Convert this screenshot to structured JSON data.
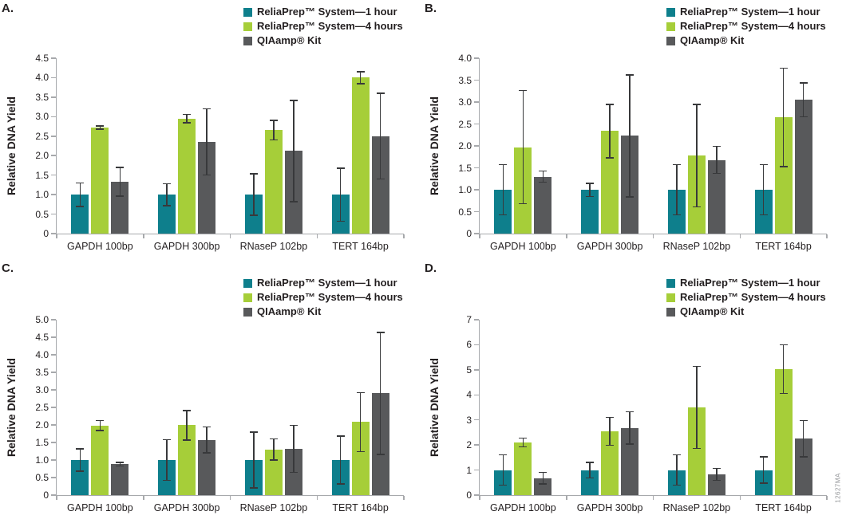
{
  "figure": {
    "ylabel": "Relative DNA Yield",
    "watermark": "12627MA",
    "panel_labels": [
      "A.",
      "B.",
      "C.",
      "D."
    ]
  },
  "legend": [
    {
      "label": "ReliaPrep™ System—1 hour",
      "color": "#0E7F8C",
      "swatch_icon": "square-swatch-icon"
    },
    {
      "label": "ReliaPrep™ System—4 hours",
      "color": "#A6CE39",
      "swatch_icon": "square-swatch-icon"
    },
    {
      "label": "QIAamp® Kit",
      "color": "#58595B",
      "swatch_icon": "square-swatch-icon"
    }
  ],
  "colors": {
    "teal": "#0E7F8C",
    "green": "#A6CE39",
    "gray": "#58595B",
    "axis": "#A7A9AC",
    "error_bar": "#38393B",
    "text": "#231F20",
    "watermark": "#939598"
  },
  "chart_data": [
    {
      "panel": "A.",
      "type": "bar",
      "title": "",
      "xlabel": "",
      "ylabel": "Relative DNA Yield",
      "ylim": [
        0,
        4.5
      ],
      "ytick_step": 0.5,
      "tick_decimals": 1,
      "grid": false,
      "legend_position": "top-right",
      "categories": [
        "GAPDH 100bp",
        "GAPDH 300bp",
        "RNaseP 102bp",
        "TERT 164bp"
      ],
      "series": [
        {
          "name": "ReliaPrep™ System—1 hour",
          "color": "#0E7F8C",
          "values": [
            1.0,
            1.0,
            1.0,
            1.0
          ],
          "errors": [
            0.3,
            0.28,
            0.53,
            0.68
          ]
        },
        {
          "name": "ReliaPrep™ System—4 hours",
          "color": "#A6CE39",
          "values": [
            2.72,
            2.95,
            2.65,
            4.0
          ],
          "errors": [
            0.04,
            0.11,
            0.25,
            0.15
          ]
        },
        {
          "name": "QIAamp® Kit",
          "color": "#58595B",
          "values": [
            1.33,
            2.35,
            2.12,
            2.5
          ],
          "errors": [
            0.37,
            0.85,
            1.3,
            1.1
          ]
        }
      ]
    },
    {
      "panel": "B.",
      "type": "bar",
      "title": "",
      "xlabel": "",
      "ylabel": "Relative DNA Yield",
      "ylim": [
        0,
        4.0
      ],
      "ytick_step": 0.5,
      "tick_decimals": 1,
      "grid": false,
      "legend_position": "top-right",
      "categories": [
        "GAPDH 100bp",
        "GAPDH 300bp",
        "RNaseP 102bp",
        "TERT 164bp"
      ],
      "series": [
        {
          "name": "ReliaPrep™ System—1 hour",
          "color": "#0E7F8C",
          "values": [
            1.0,
            1.0,
            1.0,
            1.0
          ],
          "errors": [
            0.57,
            0.15,
            0.57,
            0.57
          ]
        },
        {
          "name": "ReliaPrep™ System—4 hours",
          "color": "#A6CE39",
          "values": [
            1.97,
            2.34,
            1.78,
            2.65
          ],
          "errors": [
            1.29,
            0.61,
            1.17,
            1.12
          ]
        },
        {
          "name": "QIAamp® Kit",
          "color": "#58595B",
          "values": [
            1.3,
            2.23,
            1.68,
            3.05
          ],
          "errors": [
            0.13,
            1.39,
            0.31,
            0.39
          ]
        }
      ]
    },
    {
      "panel": "C.",
      "type": "bar",
      "title": "",
      "xlabel": "",
      "ylabel": "Relative DNA Yield",
      "ylim": [
        0,
        5.0
      ],
      "ytick_step": 0.5,
      "tick_decimals": 1,
      "grid": false,
      "legend_position": "top-right",
      "categories": [
        "GAPDH 100bp",
        "GAPDH 300bp",
        "RNaseP 102bp",
        "TERT 164bp"
      ],
      "series": [
        {
          "name": "ReliaPrep™ System—1 hour",
          "color": "#0E7F8C",
          "values": [
            1.0,
            1.0,
            1.0,
            1.0
          ],
          "errors": [
            0.32,
            0.58,
            0.79,
            0.68
          ]
        },
        {
          "name": "ReliaPrep™ System—4 hours",
          "color": "#A6CE39",
          "values": [
            1.98,
            1.99,
            1.3,
            2.08
          ],
          "errors": [
            0.14,
            0.42,
            0.3,
            0.84
          ]
        },
        {
          "name": "QIAamp® Kit",
          "color": "#58595B",
          "values": [
            0.88,
            1.57,
            1.32,
            2.9
          ],
          "errors": [
            0.05,
            0.37,
            0.67,
            1.74
          ]
        }
      ]
    },
    {
      "panel": "D.",
      "type": "bar",
      "title": "",
      "xlabel": "",
      "ylabel": "Relative DNA Yield",
      "ylim": [
        0,
        7
      ],
      "ytick_step": 1,
      "tick_decimals": 0,
      "grid": false,
      "legend_position": "top-right",
      "categories": [
        "GAPDH 100bp",
        "GAPDH 300bp",
        "RNaseP 102bp",
        "TERT 164bp"
      ],
      "series": [
        {
          "name": "ReliaPrep™ System—1 hour",
          "color": "#0E7F8C",
          "values": [
            1.0,
            1.0,
            1.0,
            1.0
          ],
          "errors": [
            0.6,
            0.31,
            0.61,
            0.53
          ]
        },
        {
          "name": "ReliaPrep™ System—4 hours",
          "color": "#A6CE39",
          "values": [
            2.1,
            2.55,
            3.5,
            5.03
          ],
          "errors": [
            0.18,
            0.56,
            1.64,
            0.97
          ]
        },
        {
          "name": "QIAamp® Kit",
          "color": "#58595B",
          "values": [
            0.68,
            2.68,
            0.83,
            2.25
          ],
          "errors": [
            0.23,
            0.64,
            0.24,
            0.73
          ]
        }
      ]
    }
  ]
}
